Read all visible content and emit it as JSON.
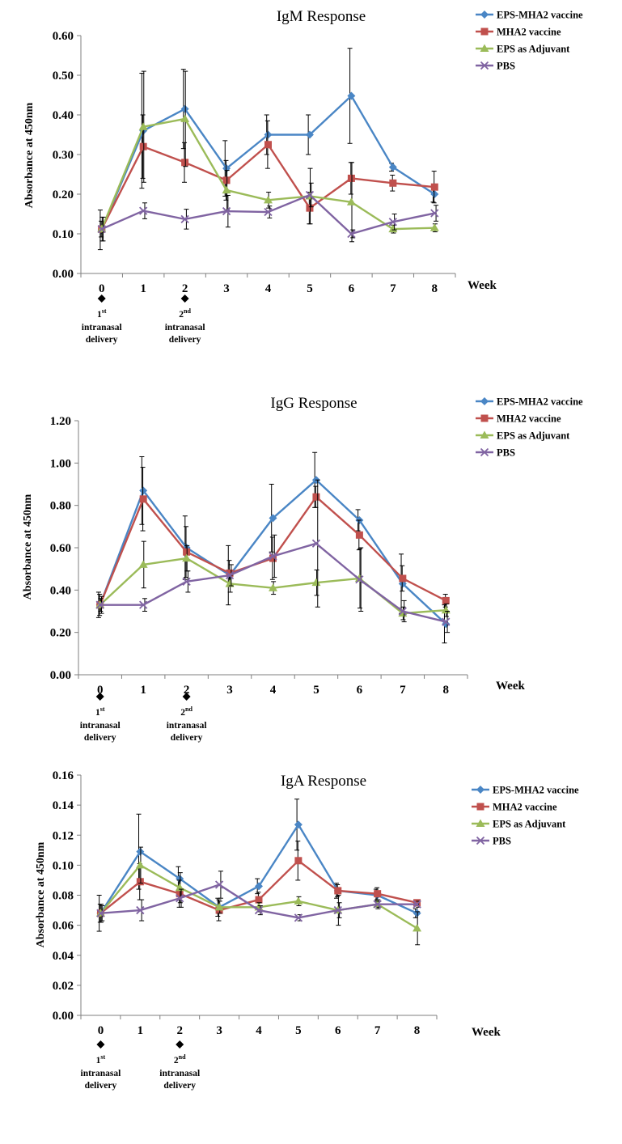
{
  "colors": {
    "EPS-MHA2 vaccine": "#4a86c5",
    "MHA2 vaccine": "#c0504d",
    "EPS as Adjuvant": "#9bbb59",
    "PBS": "#8064a2",
    "axis": "#7f7f7f",
    "errorbar": "#000000"
  },
  "chart_data": [
    {
      "type": "line",
      "title": "IgM Response",
      "ylabel": "Absorbance at 450nm",
      "xlabel": "Week",
      "x": [
        0,
        1,
        2,
        3,
        4,
        5,
        6,
        7,
        8
      ],
      "ylim": [
        0,
        0.6
      ],
      "yticks": [
        "0.00",
        "0.10",
        "0.20",
        "0.30",
        "0.40",
        "0.50",
        "0.60"
      ],
      "legend_position": "top-right",
      "series": [
        {
          "name": "EPS-MHA2 vaccine",
          "marker": "diamond",
          "values": [
            0.11,
            0.36,
            0.415,
            0.265,
            0.35,
            0.35,
            0.448,
            0.268,
            0.2
          ],
          "errors": [
            0.05,
            0.145,
            0.1,
            0.07,
            0.05,
            0.05,
            0.12,
            0.01,
            0.02
          ]
        },
        {
          "name": "MHA2 vaccine",
          "marker": "square",
          "values": [
            0.112,
            0.32,
            0.28,
            0.235,
            0.325,
            0.165,
            0.24,
            0.228,
            0.218
          ],
          "errors": [
            0.02,
            0.08,
            0.05,
            0.05,
            0.06,
            0.04,
            0.04,
            0.02,
            0.04
          ]
        },
        {
          "name": "EPS as Adjuvant",
          "marker": "triangle",
          "values": [
            0.112,
            0.37,
            0.39,
            0.21,
            0.185,
            0.195,
            0.18,
            0.112,
            0.115
          ],
          "errors": [
            0.03,
            0.14,
            0.12,
            0.05,
            0.02,
            0.07,
            0.1,
            0.01,
            0.01
          ]
        },
        {
          "name": "PBS",
          "marker": "x",
          "values": [
            0.112,
            0.158,
            0.137,
            0.157,
            0.155,
            0.198,
            0.1,
            0.13,
            0.152
          ],
          "errors": [
            0.03,
            0.02,
            0.025,
            0.04,
            0.015,
            0.03,
            0.01,
            0.02,
            0.02
          ]
        }
      ],
      "annotations": [
        {
          "week": 0,
          "ordinal": "1",
          "sup": "st",
          "line1": "intranasal",
          "line2": "delivery"
        },
        {
          "week": 2,
          "ordinal": "2",
          "sup": "nd",
          "line1": "intranasal",
          "line2": "delivery"
        }
      ]
    },
    {
      "type": "line",
      "title": "IgG Response",
      "ylabel": "Absorbance at 450nm",
      "xlabel": "Week",
      "x": [
        0,
        1,
        2,
        3,
        4,
        5,
        6,
        7,
        8
      ],
      "ylim": [
        0,
        1.2
      ],
      "yticks": [
        "0.00",
        "0.20",
        "0.40",
        "0.60",
        "0.80",
        "1.00",
        "1.20"
      ],
      "legend_position": "top-right",
      "series": [
        {
          "name": "EPS-MHA2 vaccine",
          "marker": "diamond",
          "values": [
            0.33,
            0.87,
            0.6,
            0.47,
            0.74,
            0.92,
            0.73,
            0.43,
            0.24
          ],
          "errors": [
            0.06,
            0.16,
            0.15,
            0.14,
            0.16,
            0.13,
            0.05,
            0.14,
            0.09
          ]
        },
        {
          "name": "MHA2 vaccine",
          "marker": "square",
          "values": [
            0.33,
            0.83,
            0.58,
            0.48,
            0.55,
            0.84,
            0.66,
            0.455,
            0.35
          ],
          "errors": [
            0.05,
            0.15,
            0.12,
            0.06,
            0.1,
            0.05,
            0.07,
            0.06,
            0.03
          ]
        },
        {
          "name": "EPS as Adjuvant",
          "marker": "triangle",
          "values": [
            0.33,
            0.52,
            0.55,
            0.43,
            0.41,
            0.435,
            0.455,
            0.29,
            0.305
          ],
          "errors": [
            0.03,
            0.11,
            0.06,
            0.04,
            0.03,
            0.06,
            0.14,
            0.03,
            0.03
          ]
        },
        {
          "name": "PBS",
          "marker": "x",
          "values": [
            0.33,
            0.33,
            0.44,
            0.47,
            0.56,
            0.62,
            0.45,
            0.3,
            0.25
          ],
          "errors": [
            0.04,
            0.03,
            0.05,
            0.05,
            0.1,
            0.3,
            0.15,
            0.05,
            0.05
          ]
        }
      ],
      "annotations": [
        {
          "week": 0,
          "ordinal": "1",
          "sup": "st",
          "line1": "intranasal",
          "line2": "delivery"
        },
        {
          "week": 2,
          "ordinal": "2",
          "sup": "nd",
          "line1": "intranasal",
          "line2": "delivery"
        }
      ]
    },
    {
      "type": "line",
      "title": "IgA Response",
      "ylabel": "Absorbance at 450nm",
      "xlabel": "Week",
      "x": [
        0,
        1,
        2,
        3,
        4,
        5,
        6,
        7,
        8
      ],
      "ylim": [
        0,
        0.16
      ],
      "yticks": [
        "0.00",
        "0.02",
        "0.04",
        "0.06",
        "0.08",
        "0.10",
        "0.12",
        "0.14",
        "0.16"
      ],
      "legend_position": "top-right",
      "series": [
        {
          "name": "EPS-MHA2 vaccine",
          "marker": "diamond",
          "values": [
            0.068,
            0.109,
            0.091,
            0.072,
            0.086,
            0.127,
            0.083,
            0.08,
            0.068
          ],
          "errors": [
            0.012,
            0.025,
            0.008,
            0.006,
            0.005,
            0.017,
            0.005,
            0.004,
            0.003
          ]
        },
        {
          "name": "MHA2 vaccine",
          "marker": "square",
          "values": [
            0.068,
            0.089,
            0.081,
            0.07,
            0.077,
            0.103,
            0.083,
            0.081,
            0.075
          ],
          "errors": [
            0.006,
            0.012,
            0.009,
            0.007,
            0.005,
            0.013,
            0.004,
            0.004,
            0.002
          ]
        },
        {
          "name": "EPS as Adjuvant",
          "marker": "triangle",
          "values": [
            0.068,
            0.1,
            0.085,
            0.072,
            0.072,
            0.076,
            0.07,
            0.074,
            0.058
          ],
          "errors": [
            0.006,
            0.012,
            0.01,
            0.004,
            0.003,
            0.003,
            0.01,
            0.003,
            0.011
          ]
        },
        {
          "name": "PBS",
          "marker": "x",
          "values": [
            0.068,
            0.07,
            0.078,
            0.087,
            0.07,
            0.065,
            0.07,
            0.074,
            0.074
          ],
          "errors": [
            0.005,
            0.007,
            0.006,
            0.009,
            0.003,
            0.002,
            0.005,
            0.002,
            0.002
          ]
        }
      ],
      "annotations": [
        {
          "week": 0,
          "ordinal": "1",
          "sup": "st",
          "line1": "intranasal",
          "line2": "delivery"
        },
        {
          "week": 2,
          "ordinal": "2",
          "sup": "nd",
          "line1": "intranasal",
          "line2": "delivery"
        }
      ]
    }
  ]
}
